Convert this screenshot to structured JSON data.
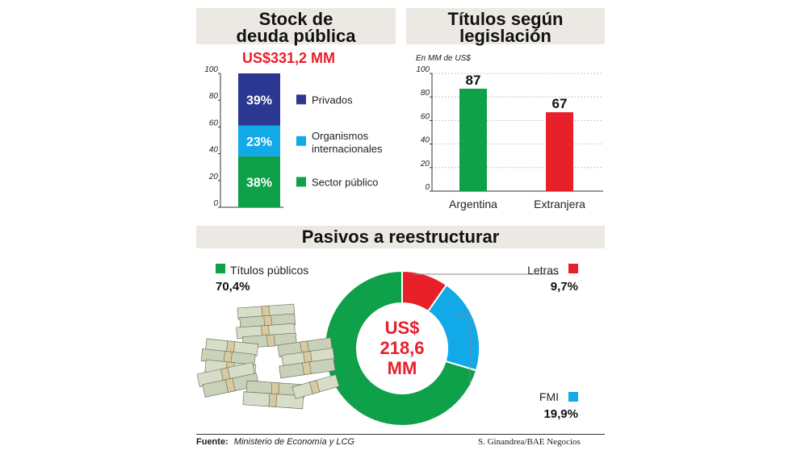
{
  "panels": {
    "stock": {
      "title_line1": "Stock de",
      "title_line2": "deuda pública",
      "total": "US$331,2 MM",
      "y_ticks": [
        "100",
        "80",
        "60",
        "40",
        "20",
        "0"
      ]
    },
    "titulos": {
      "title_line1": "Títulos según",
      "title_line2": "legislación",
      "unit_note": "En MM de US$",
      "y_ticks": [
        "100",
        "80",
        "60",
        "40",
        "20",
        "0"
      ]
    },
    "pasivos": {
      "title": "Pasivos a reestructurar",
      "center_line1": "US$",
      "center_line2": "218,6",
      "center_line3": "MM"
    }
  },
  "footer": {
    "source_label": "Fuente:",
    "source_text": "Ministerio de Economía y LCG",
    "credit": "S. Ginandrea/BAE Negocios"
  },
  "illustration": {
    "icon": "money-stacks-icon"
  },
  "chart_data": [
    {
      "type": "bar",
      "subtype": "stacked-100",
      "title": "Stock de deuda pública",
      "subtitle": "US$331,2 MM",
      "ylim": [
        0,
        100
      ],
      "ticks": [
        0,
        20,
        40,
        60,
        80,
        100
      ],
      "series": [
        {
          "name": "Sector público",
          "value": 38,
          "label": "38%",
          "color": "#0fa04a"
        },
        {
          "name": "Organismos internacionales",
          "value": 23,
          "label": "23%",
          "color": "#12a9e8"
        },
        {
          "name": "Privados",
          "value": 39,
          "label": "39%",
          "color": "#2b3790"
        }
      ],
      "legend_position": "right"
    },
    {
      "type": "bar",
      "title": "Títulos según legislación",
      "ylabel": "En MM de US$",
      "categories": [
        "Argentina",
        "Extranjera"
      ],
      "values": [
        87,
        67
      ],
      "value_labels": [
        "87",
        "67"
      ],
      "colors": [
        "#0fa04a",
        "#e8202a"
      ],
      "ylim": [
        0,
        100
      ],
      "ticks": [
        0,
        20,
        40,
        60,
        80,
        100
      ],
      "grid": true
    },
    {
      "type": "pie",
      "subtype": "donut",
      "title": "Pasivos a reestructurar",
      "center_text": "US$ 218,6 MM",
      "slices": [
        {
          "name": "Letras",
          "value": 9.7,
          "label": "9,7%",
          "color": "#e8202a"
        },
        {
          "name": "FMI",
          "value": 19.9,
          "label": "19,9%",
          "color": "#12a9e8"
        },
        {
          "name": "Títulos públicos",
          "value": 70.4,
          "label": "70,4%",
          "color": "#0fa04a"
        }
      ]
    }
  ]
}
